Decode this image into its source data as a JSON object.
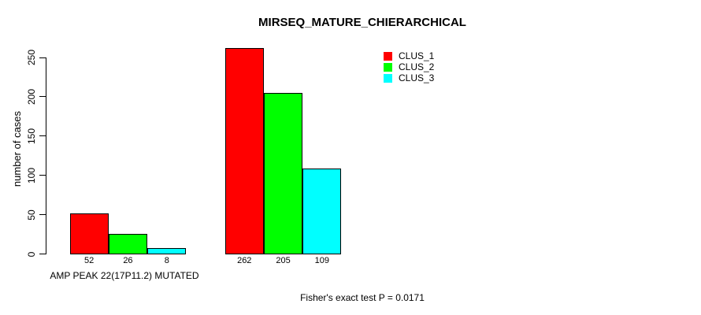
{
  "chart_data": {
    "type": "bar",
    "title": "MIRSEQ_MATURE_CHIERARCHICAL",
    "ylabel": "number of cases",
    "xlabel": "AMP PEAK 22(17P11.2) MUTATED",
    "annotation": "Fisher's exact test P = 0.0171",
    "ylim": [
      0,
      250
    ],
    "yticks": [
      0,
      50,
      100,
      150,
      200,
      250
    ],
    "grid": false,
    "legend_position": "top-right",
    "categories": [
      "AMP PEAK 22(17P11.2) MUTATED",
      ""
    ],
    "series": [
      {
        "name": "CLUS_1",
        "color": "#ff0000",
        "values": [
          52,
          262
        ]
      },
      {
        "name": "CLUS_2",
        "color": "#00ff00",
        "values": [
          26,
          205
        ]
      },
      {
        "name": "CLUS_3",
        "color": "#00ffff",
        "values": [
          8,
          109
        ]
      }
    ],
    "bar_value_labels": [
      [
        52,
        26,
        8
      ],
      [
        262,
        205,
        109
      ]
    ],
    "show_bar_value_labels": true
  }
}
